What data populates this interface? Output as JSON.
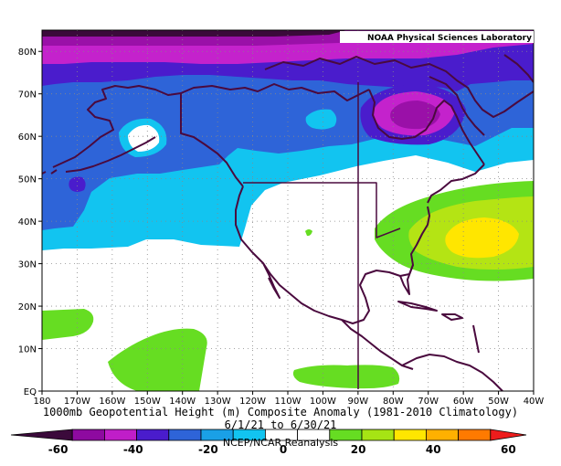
{
  "credit": "NOAA Physical Sciences Laboratory",
  "title": {
    "line1": "1000mb Geopotential Height (m) Composite Anomaly (1981-2010 Climatology)",
    "line2": "6/1/21 to 6/30/21",
    "line3": "NCEP/NCAR Reanalysis"
  },
  "lat_labels": [
    "80N",
    "70N",
    "60N",
    "50N",
    "40N",
    "30N",
    "20N",
    "10N",
    "EQ"
  ],
  "lon_labels": [
    "180",
    "170W",
    "160W",
    "150W",
    "140W",
    "130W",
    "120W",
    "110W",
    "100W",
    "90W",
    "80W",
    "70W",
    "60W",
    "50W",
    "40W"
  ],
  "colorbar": {
    "labels": [
      "-60",
      "-40",
      "-20",
      "0",
      "20",
      "40",
      "60"
    ],
    "colors": [
      "#3b0a3b",
      "#8e0aa0",
      "#c01ec8",
      "#4a1ccc",
      "#2e64d8",
      "#1aa0e6",
      "#12c4f0",
      "#ffffff",
      "#ffffff",
      "#66dd22",
      "#a6e414",
      "#ffe600",
      "#ffb000",
      "#ff7a00",
      "#ee1c1c"
    ]
  },
  "fills": {
    "deep_purple": "#3b0a3b",
    "purple": "#9a10a8",
    "magenta": "#c422cc",
    "indigo": "#4a1ccc",
    "blue": "#2e64d8",
    "cyan": "#12c4f0",
    "green": "#66dd22",
    "yellow_green": "#b4e414",
    "yellow": "#ffe600",
    "coast": "#4a0a3e"
  }
}
